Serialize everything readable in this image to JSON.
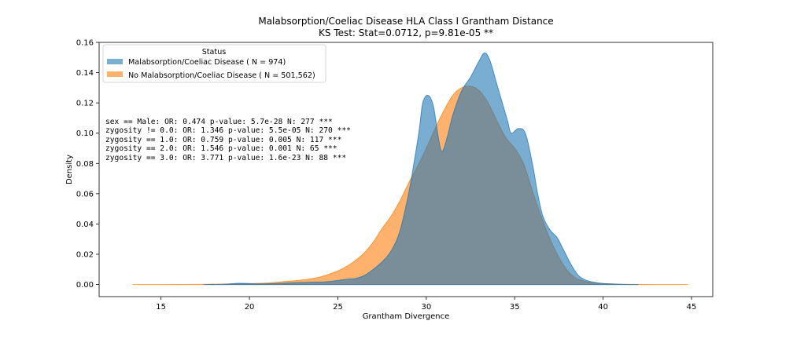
{
  "chart_data": {
    "type": "area",
    "title": "Malabsorption/Coeliac Disease HLA Class I Grantham Distance",
    "subtitle": "KS Test: Stat=0.0712, p=9.81e-05 **",
    "xlabel": "Grantham Divergence",
    "ylabel": "Density",
    "xlim": [
      11.5,
      46.2
    ],
    "ylim": [
      -0.008,
      0.16
    ],
    "x_ticks": [
      15,
      20,
      25,
      30,
      35,
      40,
      45
    ],
    "x_tick_labels": [
      "15",
      "20",
      "25",
      "30",
      "35",
      "40",
      "45"
    ],
    "y_ticks": [
      0.0,
      0.02,
      0.04,
      0.06,
      0.08,
      0.1,
      0.12,
      0.14,
      0.16
    ],
    "y_tick_labels": [
      "0.00",
      "0.02",
      "0.04",
      "0.06",
      "0.08",
      "0.10",
      "0.12",
      "0.14",
      "0.16"
    ],
    "grid": false,
    "legend": {
      "title": "Status",
      "placement": "top-left",
      "entries": [
        "Malabsorption/Coeliac Disease ( N = 974)",
        "No Malabsorption/Coeliac Disease ( N = 501,562)"
      ]
    },
    "annotations": [
      "sex == Male: OR: 0.474 p-value: 5.7e-28 N: 277 ***",
      "zygosity != 0.0: OR: 1.346 p-value: 5.5e-05 N: 270 ***",
      "zygosity == 1.0: OR: 0.759 p-value: 0.005 N: 117 ***",
      "zygosity == 2.0: OR: 1.546 p-value: 0.001 N: 65 ***",
      "zygosity == 3.0: OR: 3.771 p-value: 1.6e-23 N: 88 ***"
    ],
    "series": [
      {
        "name": "Malabsorption/Coeliac Disease ( N = 974)",
        "color": "#1f77b4",
        "x": [
          17.4,
          18.5,
          19.5,
          20.5,
          21.5,
          22.5,
          23.5,
          24.5,
          25.5,
          26.0,
          26.5,
          27.0,
          27.5,
          28.0,
          28.5,
          29.0,
          29.3,
          29.6,
          29.8,
          30.1,
          30.4,
          30.7,
          30.9,
          31.2,
          31.5,
          32.0,
          32.5,
          33.0,
          33.3,
          33.6,
          34.0,
          34.3,
          34.6,
          34.8,
          35.2,
          35.6,
          36.0,
          36.3,
          36.6,
          37.0,
          37.4,
          37.8,
          38.2,
          38.6,
          39.0,
          39.5,
          40.0,
          41.0,
          42.0
        ],
        "y": [
          0.0,
          0.0002,
          0.0008,
          0.0004,
          0.0006,
          0.0012,
          0.0015,
          0.002,
          0.0035,
          0.004,
          0.006,
          0.01,
          0.015,
          0.022,
          0.035,
          0.06,
          0.08,
          0.102,
          0.12,
          0.125,
          0.118,
          0.096,
          0.088,
          0.098,
          0.112,
          0.128,
          0.137,
          0.148,
          0.153,
          0.148,
          0.132,
          0.12,
          0.108,
          0.1,
          0.103,
          0.1,
          0.08,
          0.06,
          0.045,
          0.036,
          0.031,
          0.022,
          0.013,
          0.006,
          0.003,
          0.0015,
          0.0007,
          0.0002,
          0.0
        ]
      },
      {
        "name": "No Malabsorption/Coeliac Disease ( N = 501,562)",
        "color": "#ff7f0e",
        "x": [
          13.4,
          15.0,
          17.0,
          18.5,
          20.0,
          21.0,
          22.0,
          23.0,
          24.0,
          25.0,
          25.5,
          26.0,
          26.5,
          27.0,
          27.5,
          28.0,
          28.5,
          29.0,
          29.5,
          30.0,
          30.5,
          31.0,
          31.5,
          32.0,
          32.5,
          33.0,
          33.5,
          34.0,
          34.5,
          35.0,
          35.5,
          36.0,
          36.5,
          37.0,
          37.5,
          38.0,
          38.5,
          39.0,
          39.5,
          40.0,
          41.0,
          42.0,
          43.0,
          44.8
        ],
        "y": [
          0.0,
          0.0,
          0.0001,
          0.0003,
          0.0006,
          0.001,
          0.002,
          0.003,
          0.005,
          0.009,
          0.012,
          0.016,
          0.021,
          0.028,
          0.037,
          0.045,
          0.055,
          0.067,
          0.078,
          0.09,
          0.103,
          0.115,
          0.125,
          0.13,
          0.131,
          0.128,
          0.12,
          0.108,
          0.097,
          0.09,
          0.08,
          0.062,
          0.045,
          0.03,
          0.018,
          0.009,
          0.004,
          0.002,
          0.001,
          0.0006,
          0.0002,
          0.0001,
          0.0,
          0.0
        ]
      }
    ]
  }
}
